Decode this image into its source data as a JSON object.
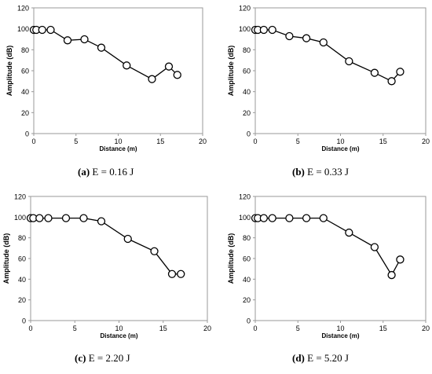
{
  "chart_data": [
    {
      "type": "line",
      "panel_label": "(a)",
      "caption": "E = 0.16 J",
      "xlabel": "Distance (m)",
      "ylabel": "Amplitude (dB)",
      "xlim": [
        0,
        20
      ],
      "ylim": [
        0,
        120
      ],
      "xticks": [
        0,
        5,
        10,
        15,
        20
      ],
      "yticks": [
        0,
        20,
        40,
        60,
        80,
        100,
        120
      ],
      "grid": false,
      "x": [
        0,
        0.3,
        1,
        2,
        4,
        6,
        8,
        11,
        14,
        16,
        17
      ],
      "y": [
        99,
        99,
        99,
        99,
        89,
        90,
        82,
        65,
        52,
        64,
        56
      ],
      "marker": "open-circle",
      "color": "#000000"
    },
    {
      "type": "line",
      "panel_label": "(b)",
      "caption": "E = 0.33 J",
      "xlabel": "Distance (m)",
      "ylabel": "Amplitude (dB)",
      "xlim": [
        0,
        20
      ],
      "ylim": [
        0,
        120
      ],
      "xticks": [
        0,
        5,
        10,
        15,
        20
      ],
      "yticks": [
        0,
        20,
        40,
        60,
        80,
        100,
        120
      ],
      "grid": false,
      "x": [
        0,
        0.3,
        1,
        2,
        4,
        6,
        8,
        11,
        14,
        16,
        17
      ],
      "y": [
        99,
        99,
        99,
        99,
        93,
        91,
        87,
        69,
        58,
        50,
        59
      ],
      "marker": "open-circle",
      "color": "#000000"
    },
    {
      "type": "line",
      "panel_label": "(c)",
      "caption": "E = 2.20 J",
      "xlabel": "Distance (m)",
      "ylabel": "Amplitude (dB)",
      "xlim": [
        0,
        20
      ],
      "ylim": [
        0,
        120
      ],
      "xticks": [
        0,
        5,
        10,
        15,
        20
      ],
      "yticks": [
        0,
        20,
        40,
        60,
        80,
        100,
        120
      ],
      "grid": false,
      "x": [
        0,
        0.3,
        1,
        2,
        4,
        6,
        8,
        11,
        14,
        16,
        17
      ],
      "y": [
        99,
        99,
        99,
        99,
        99,
        99,
        96,
        79,
        67,
        45,
        45
      ],
      "marker": "open-circle",
      "color": "#000000"
    },
    {
      "type": "line",
      "panel_label": "(d)",
      "caption": "E = 5.20 J",
      "xlabel": "Distance (m)",
      "ylabel": "Amplitude (dB)",
      "xlim": [
        0,
        20
      ],
      "ylim": [
        0,
        120
      ],
      "xticks": [
        0,
        5,
        10,
        15,
        20
      ],
      "yticks": [
        0,
        20,
        40,
        60,
        80,
        100,
        120
      ],
      "grid": false,
      "x": [
        0,
        0.3,
        1,
        2,
        4,
        6,
        8,
        11,
        14,
        16,
        17
      ],
      "y": [
        99,
        99,
        99,
        99,
        99,
        99,
        99,
        85,
        71,
        44,
        59
      ],
      "marker": "open-circle",
      "color": "#000000"
    }
  ]
}
